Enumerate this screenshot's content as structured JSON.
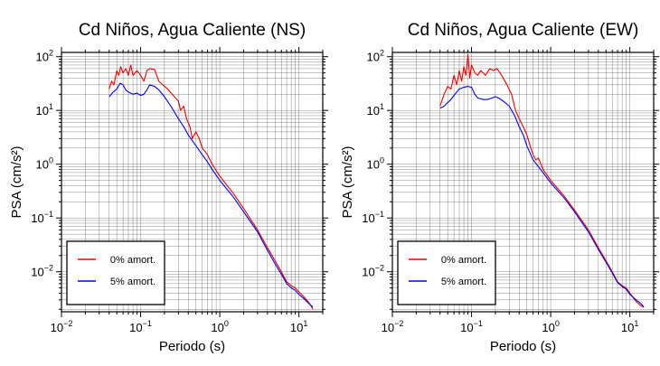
{
  "chart_data": [
    {
      "type": "line",
      "title": "Cd Niños, Agua Caliente (NS)",
      "xlabel": "Periodo (s)",
      "ylabel": "PSA (cm/s²)",
      "xscale": "log",
      "yscale": "log",
      "xlim": [
        0.01,
        20
      ],
      "ylim": [
        0.0018,
        120
      ],
      "grid": true,
      "legend_position": "bottom-left",
      "x_tick_labels": [
        {
          "value": 0.01,
          "base": "10",
          "exp": "−2"
        },
        {
          "value": 0.1,
          "base": "10",
          "exp": "−1"
        },
        {
          "value": 1,
          "base": "10",
          "exp": "0"
        },
        {
          "value": 10,
          "base": "10",
          "exp": "1"
        }
      ],
      "y_tick_labels": [
        {
          "value": 0.01,
          "base": "10",
          "exp": "−2"
        },
        {
          "value": 0.1,
          "base": "10",
          "exp": "−1"
        },
        {
          "value": 1,
          "base": "10",
          "exp": "0"
        },
        {
          "value": 10,
          "base": "10",
          "exp": "1"
        },
        {
          "value": 100,
          "base": "10",
          "exp": "2"
        }
      ],
      "series": [
        {
          "name": "0% amort.",
          "color": "#ee0000",
          "points": [
            [
              0.04,
              25
            ],
            [
              0.043,
              35
            ],
            [
              0.046,
              30
            ],
            [
              0.05,
              55
            ],
            [
              0.053,
              45
            ],
            [
              0.056,
              65
            ],
            [
              0.06,
              50
            ],
            [
              0.065,
              60
            ],
            [
              0.07,
              45
            ],
            [
              0.075,
              70
            ],
            [
              0.08,
              45
            ],
            [
              0.09,
              55
            ],
            [
              0.1,
              45
            ],
            [
              0.11,
              35
            ],
            [
              0.12,
              55
            ],
            [
              0.13,
              60
            ],
            [
              0.15,
              58
            ],
            [
              0.17,
              35
            ],
            [
              0.19,
              30
            ],
            [
              0.22,
              25
            ],
            [
              0.25,
              20
            ],
            [
              0.3,
              15
            ],
            [
              0.32,
              10
            ],
            [
              0.35,
              12
            ],
            [
              0.38,
              7
            ],
            [
              0.42,
              5
            ],
            [
              0.45,
              3
            ],
            [
              0.5,
              4
            ],
            [
              0.55,
              3
            ],
            [
              0.6,
              2
            ],
            [
              0.7,
              1.5
            ],
            [
              0.8,
              1
            ],
            [
              1,
              0.6
            ],
            [
              1.5,
              0.28
            ],
            [
              2,
              0.15
            ],
            [
              3,
              0.06
            ],
            [
              4,
              0.028
            ],
            [
              5,
              0.016
            ],
            [
              6,
              0.01
            ],
            [
              7,
              0.0065
            ],
            [
              8,
              0.0055
            ],
            [
              9,
              0.005
            ],
            [
              10,
              0.0042
            ],
            [
              11,
              0.0037
            ],
            [
              12,
              0.0032
            ],
            [
              13,
              0.0028
            ],
            [
              14,
              0.0024
            ],
            [
              15,
              0.002
            ]
          ]
        },
        {
          "name": "5% amort.",
          "color": "#0000ee",
          "points": [
            [
              0.04,
              18
            ],
            [
              0.045,
              22
            ],
            [
              0.05,
              25
            ],
            [
              0.055,
              32
            ],
            [
              0.06,
              30
            ],
            [
              0.065,
              24
            ],
            [
              0.07,
              22
            ],
            [
              0.08,
              20
            ],
            [
              0.09,
              21
            ],
            [
              0.1,
              19
            ],
            [
              0.11,
              20
            ],
            [
              0.12,
              24
            ],
            [
              0.13,
              30
            ],
            [
              0.15,
              28
            ],
            [
              0.17,
              24
            ],
            [
              0.2,
              18
            ],
            [
              0.25,
              11
            ],
            [
              0.3,
              7
            ],
            [
              0.35,
              5
            ],
            [
              0.4,
              3.5
            ],
            [
              0.5,
              2.2
            ],
            [
              0.6,
              1.5
            ],
            [
              0.7,
              1.1
            ],
            [
              0.8,
              0.8
            ],
            [
              1,
              0.5
            ],
            [
              1.5,
              0.24
            ],
            [
              2,
              0.13
            ],
            [
              3,
              0.055
            ],
            [
              4,
              0.025
            ],
            [
              5,
              0.014
            ],
            [
              6,
              0.009
            ],
            [
              7,
              0.006
            ],
            [
              8,
              0.005
            ],
            [
              9,
              0.0045
            ],
            [
              10,
              0.0038
            ],
            [
              12,
              0.003
            ],
            [
              14,
              0.0024
            ],
            [
              15,
              0.0022
            ]
          ]
        }
      ]
    },
    {
      "type": "line",
      "title": "Cd Niños, Agua Caliente (EW)",
      "xlabel": "Periodo (s)",
      "ylabel": "PSA (cm/s²)",
      "xscale": "log",
      "yscale": "log",
      "xlim": [
        0.01,
        20
      ],
      "ylim": [
        0.0018,
        120
      ],
      "grid": true,
      "legend_position": "bottom-left",
      "x_tick_labels": [
        {
          "value": 0.01,
          "base": "10",
          "exp": "−2"
        },
        {
          "value": 0.1,
          "base": "10",
          "exp": "−1"
        },
        {
          "value": 1,
          "base": "10",
          "exp": "0"
        },
        {
          "value": 10,
          "base": "10",
          "exp": "1"
        }
      ],
      "y_tick_labels": [
        {
          "value": 0.01,
          "base": "10",
          "exp": "−2"
        },
        {
          "value": 0.1,
          "base": "10",
          "exp": "−1"
        },
        {
          "value": 1,
          "base": "10",
          "exp": "0"
        },
        {
          "value": 10,
          "base": "10",
          "exp": "1"
        },
        {
          "value": 100,
          "base": "10",
          "exp": "2"
        }
      ],
      "series": [
        {
          "name": "0% amort.",
          "color": "#ee0000",
          "points": [
            [
              0.04,
              12
            ],
            [
              0.045,
              20
            ],
            [
              0.05,
              28
            ],
            [
              0.055,
              25
            ],
            [
              0.06,
              45
            ],
            [
              0.065,
              30
            ],
            [
              0.07,
              55
            ],
            [
              0.075,
              35
            ],
            [
              0.08,
              65
            ],
            [
              0.085,
              45
            ],
            [
              0.09,
              110
            ],
            [
              0.095,
              40
            ],
            [
              0.1,
              70
            ],
            [
              0.11,
              50
            ],
            [
              0.12,
              45
            ],
            [
              0.13,
              55
            ],
            [
              0.14,
              50
            ],
            [
              0.15,
              45
            ],
            [
              0.17,
              60
            ],
            [
              0.19,
              55
            ],
            [
              0.21,
              60
            ],
            [
              0.24,
              45
            ],
            [
              0.28,
              30
            ],
            [
              0.32,
              20
            ],
            [
              0.36,
              10
            ],
            [
              0.4,
              7
            ],
            [
              0.45,
              5
            ],
            [
              0.5,
              3.5
            ],
            [
              0.55,
              2.2
            ],
            [
              0.6,
              1.5
            ],
            [
              0.65,
              1.2
            ],
            [
              0.7,
              1.3
            ],
            [
              0.8,
              0.8
            ],
            [
              1,
              0.5
            ],
            [
              1.5,
              0.25
            ],
            [
              2,
              0.14
            ],
            [
              3,
              0.06
            ],
            [
              4,
              0.028
            ],
            [
              5,
              0.016
            ],
            [
              6,
              0.01
            ],
            [
              7,
              0.0065
            ],
            [
              8,
              0.0055
            ],
            [
              9,
              0.005
            ],
            [
              10,
              0.004
            ],
            [
              11,
              0.0033
            ],
            [
              12,
              0.0028
            ],
            [
              13,
              0.0025
            ],
            [
              14,
              0.0023
            ],
            [
              15,
              0.0022
            ]
          ]
        },
        {
          "name": "5% amort.",
          "color": "#0000ee",
          "points": [
            [
              0.04,
              11
            ],
            [
              0.045,
              12
            ],
            [
              0.05,
              14
            ],
            [
              0.055,
              16
            ],
            [
              0.06,
              19
            ],
            [
              0.065,
              22
            ],
            [
              0.07,
              25
            ],
            [
              0.075,
              26
            ],
            [
              0.08,
              27
            ],
            [
              0.09,
              28
            ],
            [
              0.1,
              27
            ],
            [
              0.11,
              20
            ],
            [
              0.12,
              17
            ],
            [
              0.14,
              16
            ],
            [
              0.16,
              16
            ],
            [
              0.18,
              17
            ],
            [
              0.2,
              18
            ],
            [
              0.22,
              17
            ],
            [
              0.25,
              15
            ],
            [
              0.3,
              12
            ],
            [
              0.35,
              8
            ],
            [
              0.4,
              5
            ],
            [
              0.45,
              3.5
            ],
            [
              0.5,
              2.2
            ],
            [
              0.55,
              1.6
            ],
            [
              0.6,
              1.2
            ],
            [
              0.7,
              0.9
            ],
            [
              0.8,
              0.7
            ],
            [
              1,
              0.45
            ],
            [
              1.5,
              0.23
            ],
            [
              2,
              0.13
            ],
            [
              3,
              0.055
            ],
            [
              4,
              0.026
            ],
            [
              5,
              0.015
            ],
            [
              6,
              0.0095
            ],
            [
              7,
              0.0063
            ],
            [
              8,
              0.0053
            ],
            [
              9,
              0.0047
            ],
            [
              10,
              0.0038
            ],
            [
              12,
              0.003
            ],
            [
              14,
              0.0025
            ],
            [
              15,
              0.0022
            ]
          ]
        }
      ]
    }
  ]
}
